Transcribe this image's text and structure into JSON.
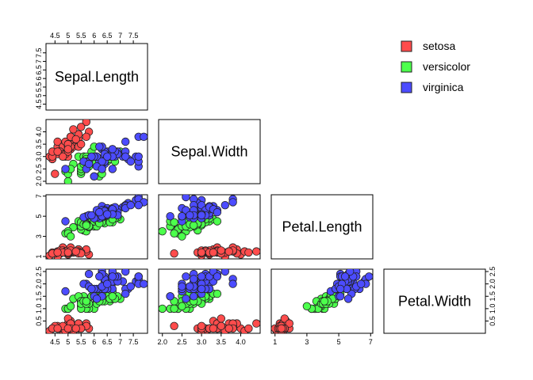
{
  "chart_data": {
    "type": "scatter",
    "variables": [
      "Sepal.Length",
      "Sepal.Width",
      "Petal.Length",
      "Petal.Width"
    ],
    "ranges": [
      [
        4.3,
        7.9
      ],
      [
        2.0,
        4.4
      ],
      [
        1.0,
        6.9
      ],
      [
        0.1,
        2.5
      ]
    ],
    "ticks": [
      [
        4.5,
        5.5,
        6.5,
        7.5,
        5,
        6,
        7
      ],
      [
        2.0,
        3.0,
        4.0,
        2.5,
        3.5
      ],
      [
        1,
        3,
        5,
        7
      ],
      [
        0.5,
        1.5,
        2.5,
        1.0,
        2.0
      ]
    ],
    "tick_labels": [
      [
        "4.5",
        "5.5",
        "6.5",
        "7.5",
        "5",
        "6",
        "7"
      ],
      [
        "2.0",
        "3.0",
        "4.0",
        "2.5",
        "3.5"
      ],
      [
        "1",
        "3",
        "5",
        "7"
      ],
      [
        "0.5",
        "1.5",
        "2.5",
        "1.0",
        "2.0"
      ]
    ],
    "legend": {
      "position": "top-right",
      "entries": [
        {
          "label": "setosa",
          "color": "#ff4c4c"
        },
        {
          "label": "versicolor",
          "color": "#4cff4c"
        },
        {
          "label": "virginica",
          "color": "#4c4cff"
        }
      ]
    },
    "series": [
      {
        "name": "setosa",
        "color": "#ff4c4c",
        "points": [
          [
            5.1,
            3.5,
            1.4,
            0.2
          ],
          [
            4.9,
            3.0,
            1.4,
            0.2
          ],
          [
            4.7,
            3.2,
            1.3,
            0.2
          ],
          [
            4.6,
            3.1,
            1.5,
            0.2
          ],
          [
            5.0,
            3.6,
            1.4,
            0.2
          ],
          [
            5.4,
            3.9,
            1.7,
            0.4
          ],
          [
            4.6,
            3.4,
            1.4,
            0.3
          ],
          [
            5.0,
            3.4,
            1.5,
            0.2
          ],
          [
            4.4,
            2.9,
            1.4,
            0.2
          ],
          [
            4.9,
            3.1,
            1.5,
            0.1
          ],
          [
            5.4,
            3.7,
            1.5,
            0.2
          ],
          [
            4.8,
            3.4,
            1.6,
            0.2
          ],
          [
            4.8,
            3.0,
            1.4,
            0.1
          ],
          [
            4.3,
            3.0,
            1.1,
            0.1
          ],
          [
            5.8,
            4.0,
            1.2,
            0.2
          ],
          [
            5.7,
            4.4,
            1.5,
            0.4
          ],
          [
            5.4,
            3.9,
            1.3,
            0.4
          ],
          [
            5.1,
            3.5,
            1.4,
            0.3
          ],
          [
            5.7,
            3.8,
            1.7,
            0.3
          ],
          [
            5.1,
            3.8,
            1.5,
            0.3
          ],
          [
            5.4,
            3.4,
            1.7,
            0.2
          ],
          [
            5.1,
            3.7,
            1.5,
            0.4
          ],
          [
            4.6,
            3.6,
            1.0,
            0.2
          ],
          [
            5.1,
            3.3,
            1.7,
            0.5
          ],
          [
            4.8,
            3.4,
            1.9,
            0.2
          ],
          [
            5.0,
            3.0,
            1.6,
            0.2
          ],
          [
            5.0,
            3.4,
            1.6,
            0.4
          ],
          [
            5.2,
            3.5,
            1.5,
            0.2
          ],
          [
            5.2,
            3.4,
            1.4,
            0.2
          ],
          [
            4.7,
            3.2,
            1.6,
            0.2
          ],
          [
            4.8,
            3.1,
            1.6,
            0.2
          ],
          [
            5.4,
            3.4,
            1.5,
            0.4
          ],
          [
            5.2,
            4.1,
            1.5,
            0.1
          ],
          [
            5.5,
            4.2,
            1.4,
            0.2
          ],
          [
            4.9,
            3.1,
            1.5,
            0.2
          ],
          [
            5.0,
            3.2,
            1.2,
            0.2
          ],
          [
            5.5,
            3.5,
            1.3,
            0.2
          ],
          [
            4.9,
            3.6,
            1.4,
            0.1
          ],
          [
            4.4,
            3.0,
            1.3,
            0.2
          ],
          [
            5.1,
            3.4,
            1.5,
            0.2
          ],
          [
            5.0,
            3.5,
            1.3,
            0.3
          ],
          [
            4.5,
            2.3,
            1.3,
            0.3
          ],
          [
            4.4,
            3.2,
            1.3,
            0.2
          ],
          [
            5.0,
            3.5,
            1.6,
            0.6
          ],
          [
            5.1,
            3.8,
            1.9,
            0.4
          ],
          [
            4.8,
            3.0,
            1.4,
            0.3
          ],
          [
            5.1,
            3.8,
            1.6,
            0.2
          ],
          [
            4.6,
            3.2,
            1.4,
            0.2
          ],
          [
            5.3,
            3.7,
            1.5,
            0.2
          ],
          [
            5.0,
            3.3,
            1.4,
            0.2
          ]
        ]
      },
      {
        "name": "versicolor",
        "color": "#4cff4c",
        "points": [
          [
            7.0,
            3.2,
            4.7,
            1.4
          ],
          [
            6.4,
            3.2,
            4.5,
            1.5
          ],
          [
            6.9,
            3.1,
            4.9,
            1.5
          ],
          [
            5.5,
            2.3,
            4.0,
            1.3
          ],
          [
            6.5,
            2.8,
            4.6,
            1.5
          ],
          [
            5.7,
            2.8,
            4.5,
            1.3
          ],
          [
            6.3,
            3.3,
            4.7,
            1.6
          ],
          [
            4.9,
            2.4,
            3.3,
            1.0
          ],
          [
            6.6,
            2.9,
            4.6,
            1.3
          ],
          [
            5.2,
            2.7,
            3.9,
            1.4
          ],
          [
            5.0,
            2.0,
            3.5,
            1.0
          ],
          [
            5.9,
            3.0,
            4.2,
            1.5
          ],
          [
            6.0,
            2.2,
            4.0,
            1.0
          ],
          [
            6.1,
            2.9,
            4.7,
            1.4
          ],
          [
            5.6,
            2.9,
            3.6,
            1.3
          ],
          [
            6.7,
            3.1,
            4.4,
            1.4
          ],
          [
            5.6,
            3.0,
            4.5,
            1.5
          ],
          [
            5.8,
            2.7,
            4.1,
            1.0
          ],
          [
            6.2,
            2.2,
            4.5,
            1.5
          ],
          [
            5.6,
            2.5,
            3.9,
            1.1
          ],
          [
            5.9,
            3.2,
            4.8,
            1.8
          ],
          [
            6.1,
            2.8,
            4.0,
            1.3
          ],
          [
            6.3,
            2.5,
            4.9,
            1.5
          ],
          [
            6.1,
            2.8,
            4.7,
            1.2
          ],
          [
            6.4,
            2.9,
            4.3,
            1.3
          ],
          [
            6.6,
            3.0,
            4.4,
            1.4
          ],
          [
            6.8,
            2.8,
            4.8,
            1.4
          ],
          [
            6.7,
            3.0,
            5.0,
            1.7
          ],
          [
            6.0,
            2.9,
            4.5,
            1.5
          ],
          [
            5.7,
            2.6,
            3.5,
            1.0
          ],
          [
            5.5,
            2.4,
            3.8,
            1.1
          ],
          [
            5.5,
            2.4,
            3.7,
            1.0
          ],
          [
            5.8,
            2.7,
            3.9,
            1.2
          ],
          [
            6.0,
            2.7,
            5.1,
            1.6
          ],
          [
            5.4,
            3.0,
            4.5,
            1.5
          ],
          [
            6.0,
            3.4,
            4.5,
            1.6
          ],
          [
            6.7,
            3.1,
            4.7,
            1.5
          ],
          [
            6.3,
            2.3,
            4.4,
            1.3
          ],
          [
            5.6,
            3.0,
            4.1,
            1.3
          ],
          [
            5.5,
            2.5,
            4.0,
            1.3
          ],
          [
            5.5,
            2.6,
            4.4,
            1.2
          ],
          [
            6.1,
            3.0,
            4.6,
            1.4
          ],
          [
            5.8,
            2.6,
            4.0,
            1.2
          ],
          [
            5.0,
            2.3,
            3.3,
            1.0
          ],
          [
            5.6,
            2.7,
            4.2,
            1.3
          ],
          [
            5.7,
            3.0,
            4.2,
            1.2
          ],
          [
            5.7,
            2.9,
            4.2,
            1.3
          ],
          [
            6.2,
            2.9,
            4.3,
            1.3
          ],
          [
            5.1,
            2.5,
            3.0,
            1.1
          ],
          [
            5.7,
            2.8,
            4.1,
            1.3
          ]
        ]
      },
      {
        "name": "virginica",
        "color": "#4c4cff",
        "points": [
          [
            6.3,
            3.3,
            6.0,
            2.5
          ],
          [
            5.8,
            2.7,
            5.1,
            1.9
          ],
          [
            7.1,
            3.0,
            5.9,
            2.1
          ],
          [
            6.3,
            2.9,
            5.6,
            1.8
          ],
          [
            6.5,
            3.0,
            5.8,
            2.2
          ],
          [
            7.6,
            3.0,
            6.6,
            2.1
          ],
          [
            4.9,
            2.5,
            4.5,
            1.7
          ],
          [
            7.3,
            2.9,
            6.3,
            1.8
          ],
          [
            6.7,
            2.5,
            5.8,
            1.8
          ],
          [
            7.2,
            3.6,
            6.1,
            2.5
          ],
          [
            6.5,
            3.2,
            5.1,
            2.0
          ],
          [
            6.4,
            2.7,
            5.3,
            1.9
          ],
          [
            6.8,
            3.0,
            5.5,
            2.1
          ],
          [
            5.7,
            2.5,
            5.0,
            2.0
          ],
          [
            5.8,
            2.8,
            5.1,
            2.4
          ],
          [
            6.4,
            3.2,
            5.3,
            2.3
          ],
          [
            6.5,
            3.0,
            5.5,
            1.8
          ],
          [
            7.7,
            3.8,
            6.7,
            2.2
          ],
          [
            7.7,
            2.6,
            6.9,
            2.3
          ],
          [
            6.0,
            2.2,
            5.0,
            1.5
          ],
          [
            6.9,
            3.2,
            5.7,
            2.3
          ],
          [
            5.6,
            2.8,
            4.9,
            2.0
          ],
          [
            7.7,
            2.8,
            6.7,
            2.0
          ],
          [
            6.3,
            2.7,
            4.9,
            1.8
          ],
          [
            6.7,
            3.3,
            5.7,
            2.1
          ],
          [
            7.2,
            3.2,
            6.0,
            1.8
          ],
          [
            6.2,
            2.8,
            4.8,
            1.8
          ],
          [
            6.1,
            3.0,
            4.9,
            1.8
          ],
          [
            6.4,
            2.8,
            5.6,
            2.1
          ],
          [
            7.2,
            3.0,
            5.8,
            1.6
          ],
          [
            7.4,
            2.8,
            6.1,
            1.9
          ],
          [
            7.9,
            3.8,
            6.4,
            2.0
          ],
          [
            6.4,
            2.8,
            5.6,
            2.2
          ],
          [
            6.3,
            2.8,
            5.1,
            1.5
          ],
          [
            6.1,
            2.6,
            5.6,
            1.4
          ],
          [
            7.7,
            3.0,
            6.1,
            2.3
          ],
          [
            6.3,
            3.4,
            5.6,
            2.4
          ],
          [
            6.4,
            3.1,
            5.5,
            1.8
          ],
          [
            6.0,
            3.0,
            4.8,
            1.8
          ],
          [
            6.9,
            3.1,
            5.4,
            2.1
          ],
          [
            6.7,
            3.1,
            5.6,
            2.4
          ],
          [
            6.9,
            3.1,
            5.1,
            2.3
          ],
          [
            5.8,
            2.7,
            5.1,
            1.9
          ],
          [
            6.8,
            3.2,
            5.9,
            2.3
          ],
          [
            6.7,
            3.3,
            5.7,
            2.5
          ],
          [
            6.7,
            3.0,
            5.2,
            2.3
          ],
          [
            6.3,
            2.5,
            5.0,
            1.9
          ],
          [
            6.5,
            3.0,
            5.2,
            2.0
          ],
          [
            6.2,
            3.4,
            5.4,
            2.3
          ],
          [
            5.9,
            3.0,
            5.1,
            1.8
          ]
        ]
      }
    ]
  }
}
